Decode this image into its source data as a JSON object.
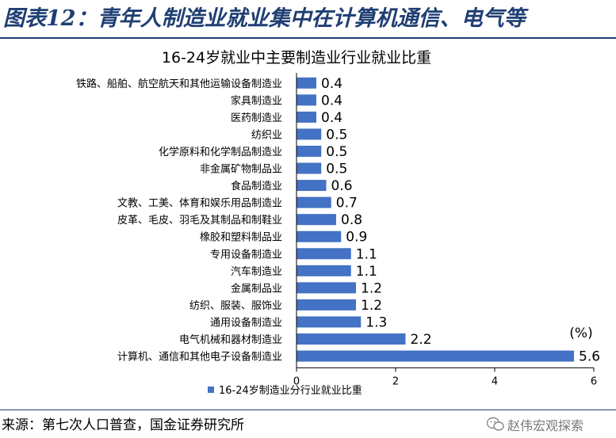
{
  "header": {
    "title": "图表12：青年人制造业就业集中在计算机通信、电气等"
  },
  "source": "来源：第七次人口普查，国金证券研究所",
  "watermark": {
    "text": "赵伟宏观探索",
    "icon": "wechat-icon"
  },
  "chart_data": {
    "type": "bar",
    "orientation": "horizontal",
    "title": "16-24岁就业中主要制造业行业就业比重",
    "unit_label": "(%)",
    "categories": [
      "铁路、船舶、航空航天和其他运输设备制造业",
      "家具制造业",
      "医药制造业",
      "纺织业",
      "化学原料和化学制品制造业",
      "非金属矿物制品业",
      "食品制造业",
      "文教、工美、体育和娱乐用品制造业",
      "皮革、毛皮、羽毛及其制品和制鞋业",
      "橡胶和塑料制品业",
      "专用设备制造业",
      "汽车制造业",
      "金属制品业",
      "纺织、服装、服饰业",
      "通用设备制造业",
      "电气机械和器材制造业",
      "计算机、通信和其他电子设备制造业"
    ],
    "values": [
      0.4,
      0.4,
      0.4,
      0.5,
      0.5,
      0.5,
      0.6,
      0.7,
      0.8,
      0.9,
      1.1,
      1.1,
      1.2,
      1.2,
      1.3,
      2.2,
      5.6
    ],
    "value_labels": [
      "0.4",
      "0.4",
      "0.4",
      "0.5",
      "0.5",
      "0.5",
      "0.6",
      "0.7",
      "0.8",
      "0.9",
      "1.1",
      "1.1",
      "1.2",
      "1.2",
      "1.3",
      "2.2",
      "5.6"
    ],
    "series": [
      {
        "name": "16-24岁制造业分行业就业比重"
      }
    ],
    "xlim": [
      0,
      6
    ],
    "xticks": [
      0,
      2,
      4,
      6
    ],
    "xtick_labels": [
      "0",
      "2",
      "4",
      "6"
    ],
    "grid": false,
    "legend_position": "bottom-left",
    "color": "#4472c4"
  }
}
